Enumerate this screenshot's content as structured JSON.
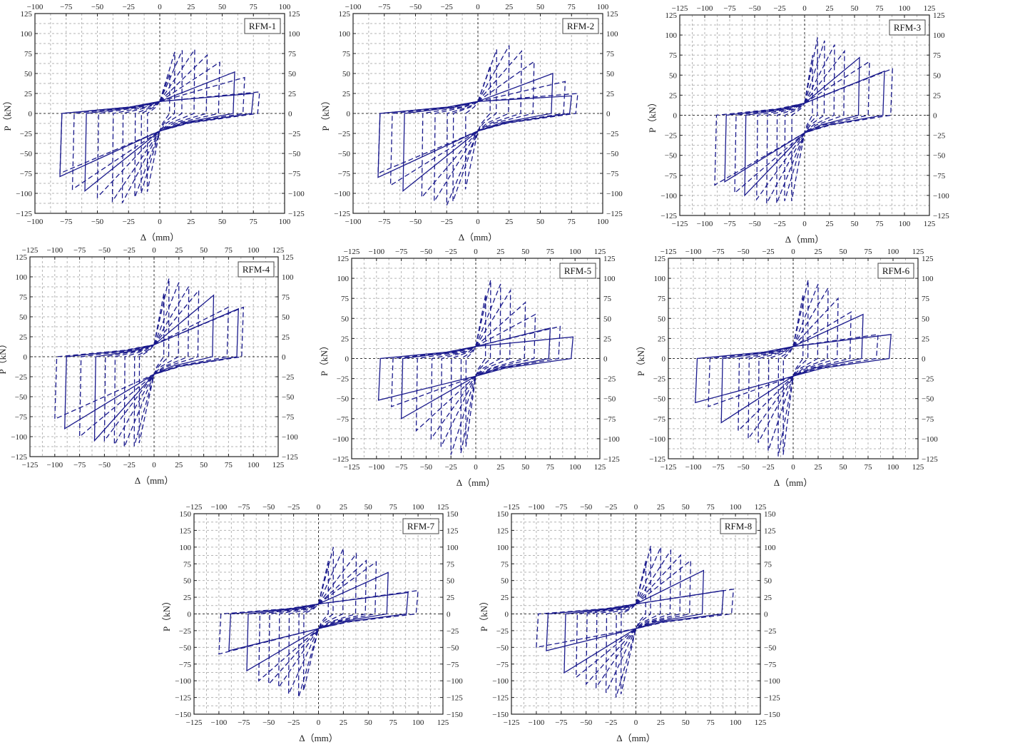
{
  "chart_data": [
    {
      "type": "line",
      "title": "RFM-1",
      "xlabel": "Δ（mm）",
      "ylabel": "P（kN）",
      "xlim": [
        -100,
        100
      ],
      "ylim": [
        -125,
        125
      ],
      "xticks": [
        -100,
        -75,
        -50,
        -25,
        0,
        25,
        50,
        75,
        100
      ],
      "yticks": [
        -125,
        -100,
        -75,
        -50,
        -25,
        0,
        25,
        50,
        75,
        100,
        125
      ],
      "grid": true,
      "cycles": [
        [
          8,
          50,
          -10,
          -98
        ],
        [
          12,
          77,
          -15,
          -100
        ],
        [
          18,
          79,
          -20,
          -105
        ],
        [
          28,
          80,
          -30,
          -112
        ],
        [
          38,
          73,
          -38,
          -110
        ],
        [
          48,
          64,
          -50,
          -105
        ],
        [
          60,
          52,
          -60,
          -97
        ],
        [
          68,
          45,
          -70,
          -95
        ],
        [
          75,
          25,
          -80,
          -79
        ],
        [
          80,
          27,
          -80,
          -75
        ]
      ],
      "solid_cycles": [
        6,
        8
      ]
    },
    {
      "type": "line",
      "title": "RFM-2",
      "xlabel": "Δ（mm）",
      "ylabel": "P（kN）",
      "xlim": [
        -100,
        100
      ],
      "ylim": [
        -125,
        125
      ],
      "xticks": [
        -100,
        -75,
        -50,
        -25,
        0,
        25,
        50,
        75,
        100
      ],
      "yticks": [
        -125,
        -100,
        -75,
        -50,
        -25,
        0,
        25,
        50,
        75,
        100,
        125
      ],
      "grid": true,
      "cycles": [
        [
          10,
          60,
          -10,
          -95
        ],
        [
          15,
          80,
          -20,
          -110
        ],
        [
          25,
          85,
          -25,
          -115
        ],
        [
          35,
          78,
          -35,
          -110
        ],
        [
          45,
          65,
          -45,
          -105
        ],
        [
          60,
          50,
          -60,
          -97
        ],
        [
          70,
          40,
          -70,
          -90
        ],
        [
          75,
          22,
          -80,
          -80
        ],
        [
          80,
          25,
          -80,
          -75
        ]
      ],
      "solid_cycles": [
        5,
        7
      ]
    },
    {
      "type": "line",
      "title": "RFM-3",
      "xlabel": "Δ（mm）",
      "ylabel": "P（kN）",
      "xlim": [
        -125,
        125
      ],
      "ylim": [
        -125,
        125
      ],
      "xticks": [
        -125,
        -100,
        -75,
        -50,
        -25,
        0,
        25,
        50,
        75,
        100,
        125
      ],
      "yticks": [
        -125,
        -100,
        -75,
        -50,
        -25,
        0,
        25,
        50,
        75,
        100,
        125
      ],
      "grid": true,
      "cycles": [
        [
          8,
          75,
          -13,
          -107
        ],
        [
          13,
          97,
          -20,
          -107
        ],
        [
          20,
          93,
          -28,
          -110
        ],
        [
          30,
          88,
          -38,
          -110
        ],
        [
          40,
          80,
          -48,
          -105
        ],
        [
          55,
          72,
          -60,
          -100
        ],
        [
          65,
          67,
          -70,
          -97
        ],
        [
          80,
          55,
          -80,
          -83
        ],
        [
          88,
          58,
          -90,
          -87
        ]
      ],
      "solid_cycles": [
        5,
        7
      ]
    },
    {
      "type": "line",
      "title": "RFM-4",
      "xlabel": "Δ（mm）",
      "ylabel": "P（kN）",
      "xlim": [
        -125,
        125
      ],
      "ylim": [
        -125,
        125
      ],
      "xticks": [
        -125,
        -100,
        -75,
        -50,
        -25,
        0,
        25,
        50,
        75,
        100,
        125
      ],
      "yticks": [
        -125,
        -100,
        -75,
        -50,
        -25,
        0,
        25,
        50,
        75,
        100,
        125
      ],
      "grid": true,
      "cycles": [
        [
          10,
          80,
          -15,
          -108
        ],
        [
          15,
          98,
          -20,
          -112
        ],
        [
          25,
          93,
          -30,
          -113
        ],
        [
          35,
          88,
          -40,
          -110
        ],
        [
          45,
          83,
          -50,
          -105
        ],
        [
          60,
          77,
          -60,
          -105
        ],
        [
          75,
          62,
          -75,
          -100
        ],
        [
          85,
          60,
          -90,
          -90
        ],
        [
          90,
          62,
          -100,
          -78
        ]
      ],
      "solid_cycles": [
        5,
        7
      ]
    },
    {
      "type": "line",
      "title": "RFM-5",
      "xlabel": "Δ（mm）",
      "ylabel": "P（kN）",
      "xlim": [
        -125,
        125
      ],
      "ylim": [
        -125,
        125
      ],
      "xticks": [
        -125,
        -100,
        -75,
        -50,
        -25,
        0,
        25,
        50,
        75,
        100,
        125
      ],
      "yticks": [
        -125,
        -100,
        -75,
        -50,
        -25,
        0,
        25,
        50,
        75,
        100,
        125
      ],
      "grid": true,
      "cycles": [
        [
          10,
          80,
          -10,
          -110
        ],
        [
          15,
          98,
          -15,
          -118
        ],
        [
          25,
          93,
          -25,
          -120
        ],
        [
          35,
          85,
          -35,
          -110
        ],
        [
          50,
          70,
          -45,
          -100
        ],
        [
          60,
          55,
          -60,
          -90
        ],
        [
          75,
          38,
          -75,
          -75
        ],
        [
          85,
          40,
          -85,
          -60
        ],
        [
          98,
          27,
          -98,
          -52
        ]
      ],
      "solid_cycles": [
        6,
        8
      ]
    },
    {
      "type": "line",
      "title": "RFM-6",
      "xlabel": "Δ（mm）",
      "ylabel": "P（kN）",
      "xlim": [
        -125,
        125
      ],
      "ylim": [
        -125,
        125
      ],
      "xticks": [
        -125,
        -100,
        -75,
        -50,
        -25,
        0,
        25,
        50,
        75,
        100,
        125
      ],
      "yticks": [
        -125,
        -100,
        -75,
        -50,
        -25,
        0,
        25,
        50,
        75,
        100,
        125
      ],
      "grid": true,
      "cycles": [
        [
          10,
          80,
          -10,
          -120
        ],
        [
          15,
          98,
          -15,
          -122
        ],
        [
          25,
          93,
          -25,
          -115
        ],
        [
          35,
          88,
          -35,
          -105
        ],
        [
          45,
          75,
          -45,
          -100
        ],
        [
          58,
          58,
          -55,
          -90
        ],
        [
          70,
          55,
          -72,
          -80
        ],
        [
          85,
          30,
          -85,
          -60
        ],
        [
          98,
          30,
          -98,
          -55
        ]
      ],
      "solid_cycles": [
        6,
        8
      ]
    },
    {
      "type": "line",
      "title": "RFM-7",
      "xlabel": "Δ（mm）",
      "ylabel": "P（kN）",
      "xlim": [
        -125,
        125
      ],
      "ylim": [
        -150,
        150
      ],
      "xticks": [
        -125,
        -100,
        -75,
        -50,
        -25,
        0,
        25,
        50,
        75,
        100,
        125
      ],
      "yticks": [
        -150,
        -125,
        -100,
        -75,
        -50,
        -25,
        0,
        25,
        50,
        75,
        100,
        125,
        150
      ],
      "grid": true,
      "cycles": [
        [
          10,
          80,
          -15,
          -115
        ],
        [
          15,
          100,
          -20,
          -125
        ],
        [
          25,
          98,
          -30,
          -120
        ],
        [
          38,
          90,
          -40,
          -110
        ],
        [
          48,
          80,
          -50,
          -105
        ],
        [
          58,
          78,
          -60,
          -100
        ],
        [
          70,
          62,
          -72,
          -85
        ],
        [
          90,
          32,
          -90,
          -55
        ],
        [
          100,
          35,
          -100,
          -60
        ]
      ],
      "solid_cycles": [
        6,
        7
      ]
    },
    {
      "type": "line",
      "title": "RFM-8",
      "xlabel": "Δ（mm）",
      "ylabel": "P（kN）",
      "xlim": [
        -125,
        125
      ],
      "ylim": [
        -150,
        150
      ],
      "xticks": [
        -125,
        -100,
        -75,
        -50,
        -25,
        0,
        25,
        50,
        75,
        100,
        125
      ],
      "yticks": [
        -150,
        -125,
        -100,
        -75,
        -50,
        -25,
        0,
        25,
        50,
        75,
        100,
        125,
        150
      ],
      "grid": true,
      "cycles": [
        [
          10,
          80,
          -15,
          -120
        ],
        [
          15,
          102,
          -20,
          -125
        ],
        [
          25,
          100,
          -30,
          -118
        ],
        [
          35,
          95,
          -40,
          -110
        ],
        [
          45,
          88,
          -50,
          -105
        ],
        [
          55,
          80,
          -60,
          -95
        ],
        [
          68,
          65,
          -72,
          -88
        ],
        [
          88,
          35,
          -90,
          -55
        ],
        [
          98,
          37,
          -100,
          -50
        ]
      ],
      "solid_cycles": [
        6,
        7
      ]
    }
  ],
  "colors": {
    "curve": "#1a1a8c",
    "grid": "#b4b4b4",
    "axis": "#222222"
  }
}
